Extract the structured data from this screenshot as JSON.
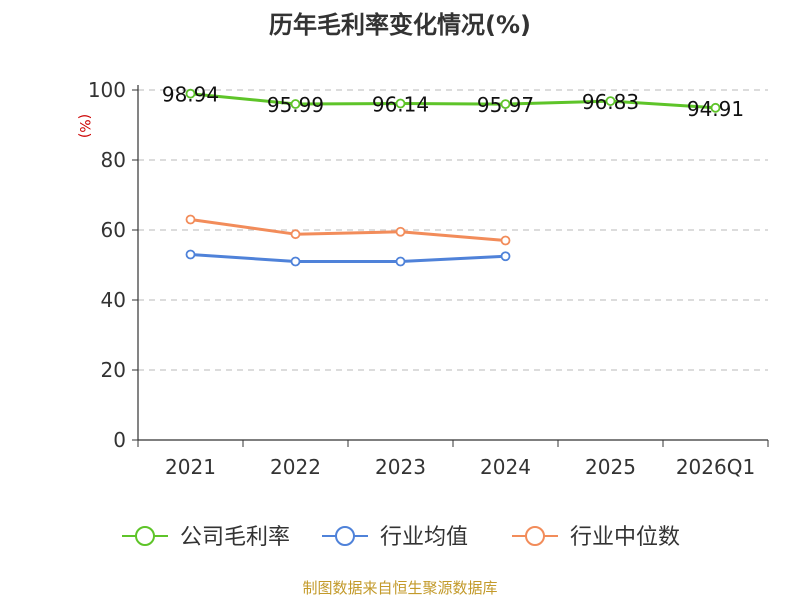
{
  "chart_data": {
    "type": "line",
    "title": "历年毛利率变化情况(%)",
    "ylabel": "(%)",
    "xlabel": "",
    "categories": [
      "2021",
      "2022",
      "2023",
      "2024",
      "2025",
      "2026Q1"
    ],
    "ylim": [
      0,
      100
    ],
    "yticks": [
      0,
      20,
      40,
      60,
      80,
      100
    ],
    "grid": true,
    "legend_position": "bottom",
    "series": [
      {
        "name": "公司毛利率",
        "color": "#5ec429",
        "values": [
          98.94,
          95.99,
          96.14,
          95.97,
          96.83,
          94.91
        ],
        "labels": [
          "98.94",
          "95.99",
          "96.14",
          "95.97",
          "96.83",
          "94.91"
        ]
      },
      {
        "name": "行业均值",
        "color": "#4f82d9",
        "values": [
          53.0,
          51.0,
          51.0,
          52.5,
          null,
          null
        ]
      },
      {
        "name": "行业中位数",
        "color": "#f28c5a",
        "values": [
          63.0,
          58.8,
          59.5,
          57.0,
          null,
          null
        ]
      }
    ],
    "source": "制图数据来自恒生聚源数据库"
  }
}
